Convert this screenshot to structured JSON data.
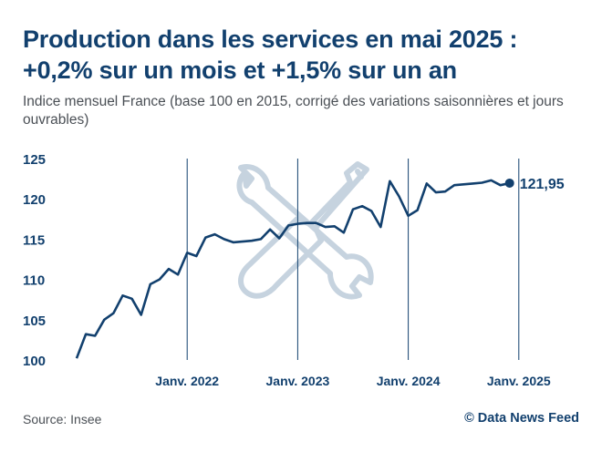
{
  "title_line1": "Production dans les services en mai 2025 :",
  "title_line2": "+0,2% sur un mois et +1,5% sur un an",
  "subtitle": "Indice mensuel France (base 100 en 2015, corrigé des variations saisonnières et jours ouvrables)",
  "source": "Source: Insee",
  "credit": "© Data News Feed",
  "icon": "wrench-screwdriver-icon",
  "colors": {
    "title": "#12406e",
    "line": "#12406e",
    "watermark": "#c6d3df",
    "text": "#4a4f55"
  },
  "chart_data": {
    "type": "line",
    "title": "Production dans les services en mai 2025 : +0,2% sur un mois et +1,5% sur un an",
    "ylim": [
      100,
      125
    ],
    "yticks": [
      "100",
      "105",
      "110",
      "115",
      "120",
      "125"
    ],
    "x_start": "2021-01",
    "xticks": [
      {
        "label": "Janv. 2022",
        "index": 12
      },
      {
        "label": "Janv. 2023",
        "index": 24
      },
      {
        "label": "Janv. 2024",
        "index": 36
      },
      {
        "label": "Janv. 2025",
        "index": 48
      }
    ],
    "values": [
      100.2,
      103.2,
      103.0,
      105.0,
      105.8,
      108.0,
      107.6,
      105.6,
      109.4,
      110.0,
      111.3,
      110.6,
      113.3,
      112.9,
      115.2,
      115.6,
      115.0,
      114.6,
      114.7,
      114.8,
      115.0,
      116.2,
      115.1,
      116.7,
      116.9,
      117.0,
      117.0,
      116.5,
      116.6,
      115.8,
      118.7,
      119.1,
      118.5,
      116.5,
      122.2,
      120.3,
      117.9,
      118.6,
      121.9,
      120.8,
      120.9,
      121.7,
      121.8,
      121.9,
      122.0,
      122.3,
      121.7,
      121.95
    ],
    "last_label": "121,95"
  }
}
